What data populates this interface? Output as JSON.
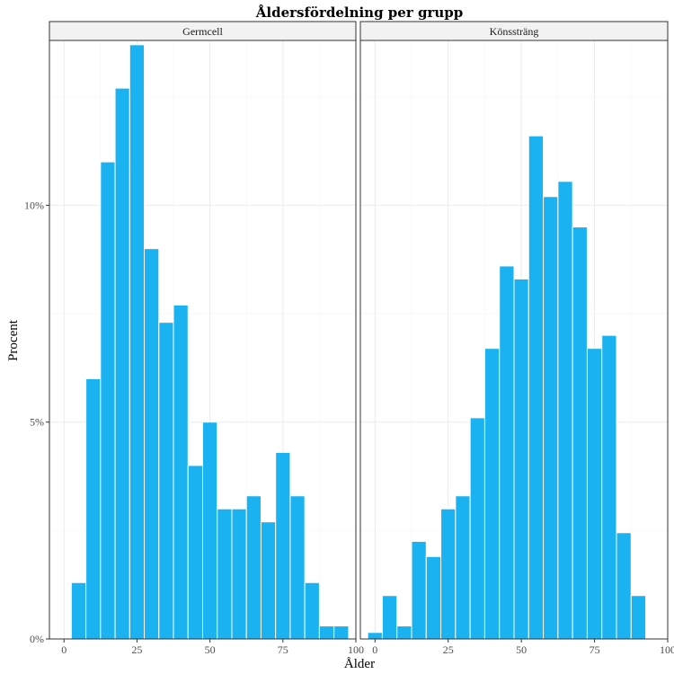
{
  "chart_data": {
    "type": "bar",
    "title": "Åldersfördelning per grupp",
    "xlabel": "Ålder",
    "ylabel": "Procent",
    "bar_color": "#1AB2F0",
    "xlim": [
      -5,
      100
    ],
    "ylim": [
      0,
      13.8
    ],
    "x_ticks": [
      0,
      25,
      50,
      75,
      100
    ],
    "y_ticks": [
      0,
      5,
      10
    ],
    "y_tick_labels": [
      "0%",
      "5%",
      "10%"
    ],
    "x_tick_labels": [
      "0",
      "25",
      "50",
      "75",
      "100"
    ],
    "bin_width": 5,
    "panels": [
      {
        "name": "Germcell",
        "bin_centers": [
          5,
          10,
          15,
          20,
          25,
          30,
          35,
          40,
          45,
          50,
          55,
          60,
          65,
          70,
          75,
          80,
          85,
          90,
          95
        ],
        "values": [
          1.3,
          6.0,
          11.0,
          12.7,
          13.7,
          9.0,
          7.3,
          7.7,
          4.0,
          5.0,
          3.0,
          3.0,
          3.3,
          2.7,
          4.3,
          3.3,
          1.3,
          0.3,
          0.3
        ]
      },
      {
        "name": "Könssträng",
        "bin_centers": [
          0,
          5,
          10,
          15,
          20,
          25,
          30,
          35,
          40,
          45,
          50,
          55,
          60,
          65,
          70,
          75,
          80,
          85,
          90
        ],
        "values": [
          0.15,
          1.0,
          0.3,
          2.25,
          1.9,
          3.0,
          3.3,
          5.1,
          6.7,
          8.6,
          8.3,
          11.6,
          10.2,
          10.55,
          9.5,
          6.7,
          7.0,
          2.45,
          1.0
        ]
      }
    ]
  }
}
